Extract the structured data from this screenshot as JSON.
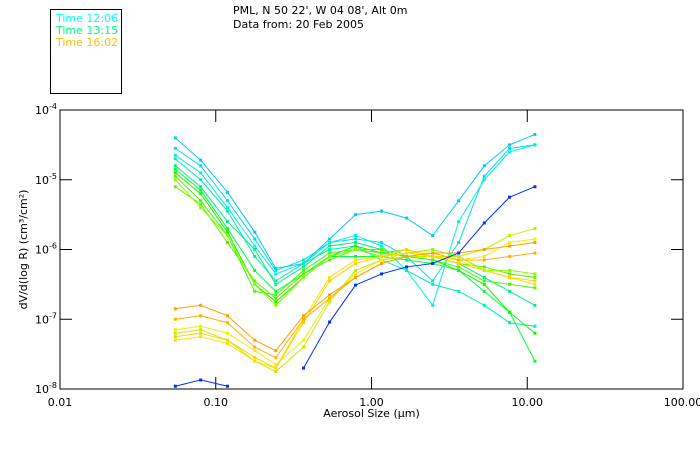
{
  "header": {
    "line1": "PML, N 50 22', W 04 08', Alt 0m",
    "line2": "Data from: 20 Feb 2005"
  },
  "legend": [
    {
      "label": "Time 12:06",
      "color": "#00ffff"
    },
    {
      "label": "Time 13:15",
      "color": "#00ff80"
    },
    {
      "label": "Time 16:02",
      "color": "#ffc000"
    }
  ],
  "chart_data": {
    "type": "line",
    "xscale": "log",
    "yscale": "log",
    "xlim": [
      0.01,
      100
    ],
    "ylim": [
      1e-08,
      0.0001
    ],
    "xlabel": "Aerosol Size (μm)",
    "ylabel": "dV/d(log R) (cm³/cm²)",
    "xticks": [
      {
        "v": 0.01,
        "label": "0.01"
      },
      {
        "v": 0.1,
        "label": "0.10"
      },
      {
        "v": 1,
        "label": "1.00"
      },
      {
        "v": 10,
        "label": "10.00"
      },
      {
        "v": 100,
        "label": "100.00"
      }
    ],
    "yticks": [
      {
        "v": -4,
        "base": "10",
        "exp": "-4"
      },
      {
        "v": -5,
        "base": "10",
        "exp": "-5"
      },
      {
        "v": -6,
        "base": "10",
        "exp": "-6"
      },
      {
        "v": -7,
        "base": "10",
        "exp": "-7"
      },
      {
        "v": -8,
        "base": "10",
        "exp": "-8"
      }
    ],
    "x": [
      0.055,
      0.08,
      0.119,
      0.178,
      0.243,
      0.366,
      0.538,
      0.79,
      1.16,
      1.68,
      2.47,
      3.63,
      5.3,
      7.7,
      11.2
    ],
    "series_note": "values given as log10 of dV/d(log R)",
    "series": [
      {
        "color": "#00c8ff",
        "values_log10": [
          -4.4,
          -4.72,
          -5.18,
          -5.75,
          -6.27,
          -6.2,
          -5.85,
          -5.5,
          -5.45,
          -5.55,
          -5.8,
          -5.3,
          -4.8,
          -4.5,
          -4.35
        ]
      },
      {
        "color": "#00e0f0",
        "values_log10": [
          -4.55,
          -4.8,
          -5.3,
          -5.85,
          -6.3,
          -6.15,
          -5.9,
          -5.85,
          -5.9,
          -6.1,
          -6.45,
          -5.9,
          -4.95,
          -4.55,
          -4.5
        ]
      },
      {
        "color": "#00f0e0",
        "values_log10": [
          -4.65,
          -4.9,
          -5.4,
          -5.95,
          -6.35,
          -6.2,
          -5.9,
          -5.8,
          -5.95,
          -6.3,
          -6.8,
          -5.6,
          -5.0,
          -4.6,
          -4.5
        ]
      },
      {
        "color": "#00f0b0",
        "values_log10": [
          -4.7,
          -5.0,
          -5.45,
          -6.1,
          -6.45,
          -6.2,
          -6.0,
          -5.95,
          -6.15,
          -6.3,
          -6.5,
          -6.6,
          -6.8,
          -7.05,
          -7.1
        ]
      },
      {
        "color": "#00f080",
        "values_log10": [
          -4.8,
          -5.1,
          -5.6,
          -6.0,
          -6.5,
          -6.25,
          -5.95,
          -5.9,
          -6.0,
          -6.1,
          -6.1,
          -6.2,
          -6.4,
          -6.6,
          -6.8
        ]
      },
      {
        "color": "#00ff40",
        "values_log10": [
          -4.85,
          -5.15,
          -5.7,
          -6.3,
          -6.6,
          -6.35,
          -6.1,
          -6.1,
          -6.1,
          -6.15,
          -6.2,
          -6.3,
          -6.6,
          -6.9,
          -7.6
        ]
      },
      {
        "color": "#20f000",
        "values_log10": [
          -4.9,
          -5.2,
          -5.75,
          -6.5,
          -6.75,
          -6.4,
          -6.1,
          -5.95,
          -6.05,
          -6.1,
          -6.15,
          -6.3,
          -6.5,
          -6.9,
          -7.2
        ]
      },
      {
        "color": "#40ff00",
        "values_log10": [
          -4.95,
          -5.3,
          -5.8,
          -6.6,
          -6.65,
          -6.3,
          -6.05,
          -6.0,
          -6.0,
          -6.1,
          -6.15,
          -6.25,
          -6.45,
          -6.5,
          -6.55
        ]
      },
      {
        "color": "#60f000",
        "values_log10": [
          -5.1,
          -5.35,
          -5.9,
          -6.45,
          -6.7,
          -6.35,
          -6.15,
          -6.0,
          -6.05,
          -6.0,
          -6.1,
          -6.2,
          -6.25,
          -6.35,
          -6.4
        ]
      },
      {
        "color": "#80ff00",
        "values_log10": [
          -5.0,
          -5.4,
          -5.8,
          -6.5,
          -6.8,
          -6.4,
          -6.1,
          -6.0,
          -6.1,
          -6.05,
          -6.0,
          -6.1,
          -6.3,
          -6.3,
          -6.35
        ]
      },
      {
        "color": "#c0f000",
        "values_log10": [
          -7.2,
          -7.15,
          -7.3,
          -7.6,
          -7.75,
          -7.4,
          -6.75,
          -6.3,
          -6.15,
          -6.1,
          -6.1,
          -6.1,
          -6.0,
          -5.8,
          -5.7
        ]
      },
      {
        "color": "#f0f000",
        "values_log10": [
          -7.15,
          -7.1,
          -7.2,
          -7.45,
          -7.65,
          -7.3,
          -6.7,
          -6.35,
          -6.15,
          -6.05,
          -6.1,
          -6.15,
          -6.1,
          -5.9,
          -5.85
        ]
      },
      {
        "color": "#ffe000",
        "values_log10": [
          -7.3,
          -7.25,
          -7.35,
          -7.6,
          -7.7,
          -7.0,
          -6.4,
          -6.15,
          -6.1,
          -6.05,
          -6.05,
          -6.15,
          -6.3,
          -6.4,
          -6.5
        ]
      },
      {
        "color": "#ffd000",
        "values_log10": [
          -7.25,
          -7.2,
          -7.3,
          -7.55,
          -7.7,
          -7.05,
          -6.45,
          -6.2,
          -6.1,
          -6.0,
          -6.1,
          -6.2,
          -6.3,
          -6.4,
          -6.45
        ]
      },
      {
        "color": "#ffb000",
        "values_log10": [
          -7.0,
          -6.95,
          -7.05,
          -7.4,
          -7.55,
          -7.0,
          -6.7,
          -6.4,
          -6.2,
          -6.1,
          -6.05,
          -6.15,
          -6.15,
          -6.1,
          -6.05
        ]
      },
      {
        "color": "#ffa000",
        "values_log10": [
          -6.85,
          -6.8,
          -6.95,
          -7.3,
          -7.45,
          -6.95,
          -6.65,
          -6.4,
          -6.2,
          -6.1,
          -6.05,
          -6.05,
          -6.0,
          -5.95,
          -5.9
        ]
      },
      {
        "color": "#0030ff",
        "values_log10": [
          -7.96,
          -7.87,
          -7.96,
          null,
          null,
          -7.7,
          -7.04,
          -6.51,
          -6.35,
          -6.25,
          -6.2,
          -6.05,
          -5.62,
          -5.25,
          -5.1
        ]
      }
    ]
  }
}
